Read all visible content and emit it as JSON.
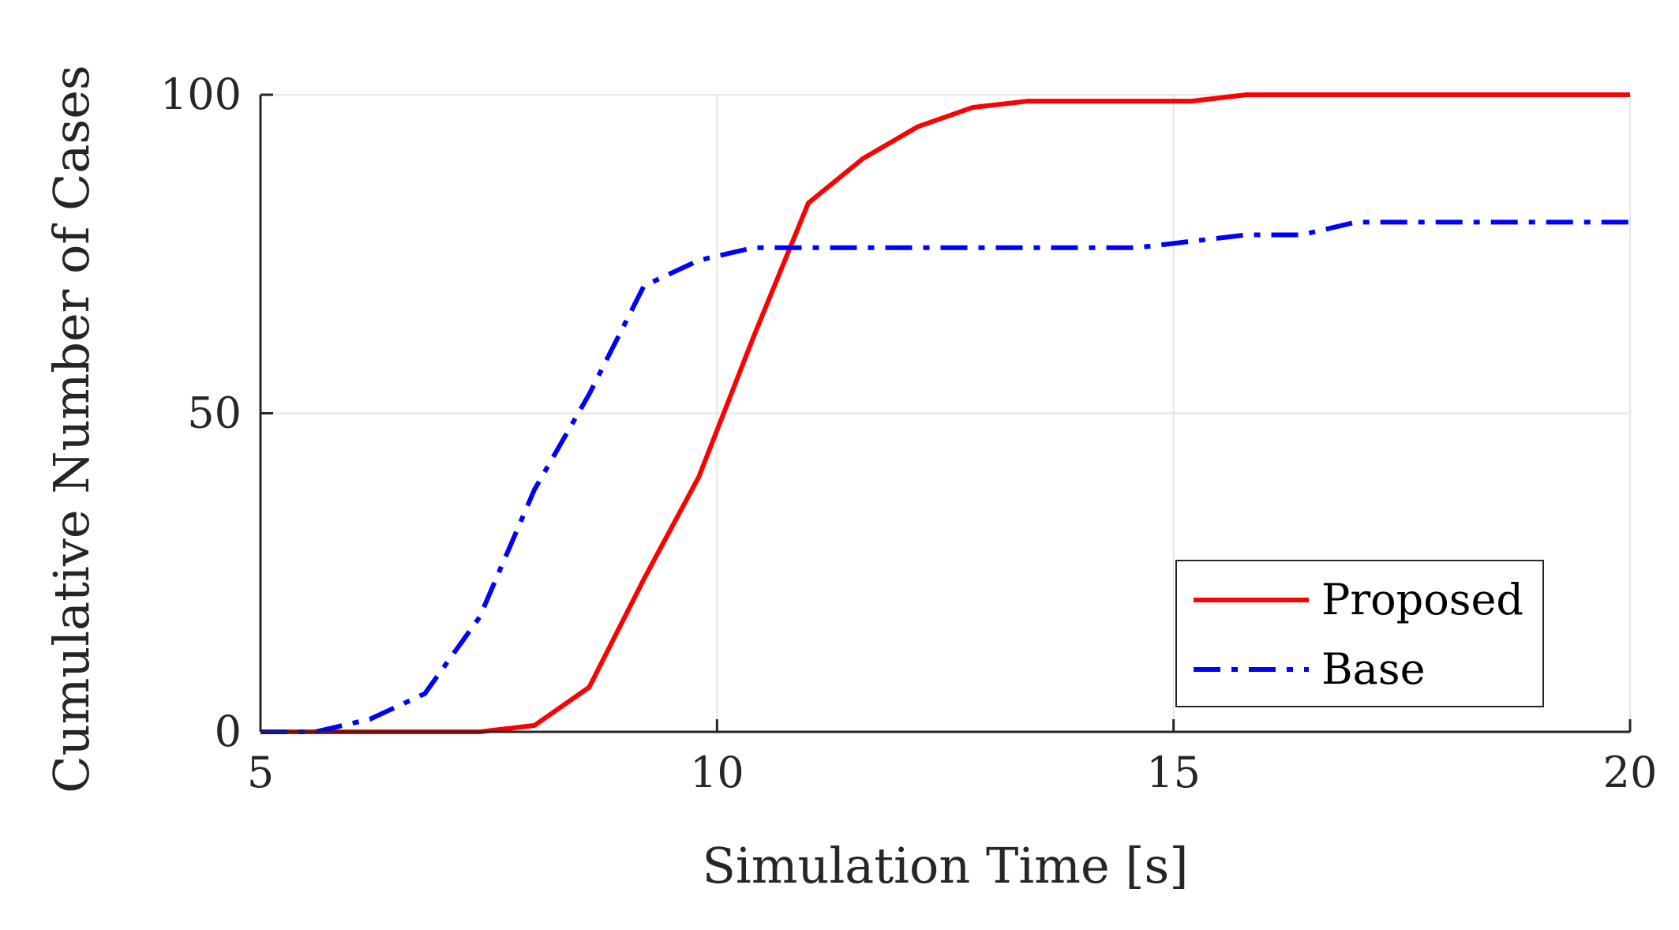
{
  "chart_data": {
    "type": "line",
    "title": "",
    "xlabel": "Simulation Time [s]",
    "ylabel": "Cumulative Number of Cases",
    "xlim": [
      5,
      20
    ],
    "ylim": [
      0,
      100
    ],
    "xticks": [
      5,
      10,
      15,
      20
    ],
    "yticks": [
      0,
      50,
      100
    ],
    "grid": true,
    "legend_position": "bottom-right",
    "series": [
      {
        "name": "Proposed",
        "color": "#ff0000",
        "style": "solid",
        "x": [
          5,
          5.6,
          6.2,
          6.8,
          7.4,
          8.0,
          8.6,
          9.2,
          9.8,
          10.4,
          11.0,
          11.6,
          12.2,
          12.8,
          13.4,
          14.0,
          14.6,
          15.2,
          15.8,
          16.4,
          17.0,
          17.6,
          18.2,
          18.8,
          19.4,
          20.0
        ],
        "y": [
          0,
          0,
          0,
          0,
          0,
          1,
          7,
          24,
          40,
          62,
          83,
          90,
          95,
          98,
          99,
          99,
          99,
          99,
          100,
          100,
          100,
          100,
          100,
          100,
          100,
          100
        ]
      },
      {
        "name": "Base",
        "color": "#0000ff",
        "style": "dashdot",
        "x": [
          5,
          5.6,
          6.2,
          6.8,
          7.4,
          8.0,
          8.6,
          9.2,
          9.8,
          10.4,
          11.0,
          11.6,
          12.2,
          12.8,
          13.4,
          14.0,
          14.6,
          15.2,
          15.8,
          16.4,
          17.0,
          17.6,
          18.2,
          18.8,
          19.4,
          20.0
        ],
        "y": [
          0,
          0,
          2,
          6,
          18,
          38,
          53,
          70,
          74,
          76,
          76,
          76,
          76,
          76,
          76,
          76,
          76,
          77,
          78,
          78,
          80,
          80,
          80,
          80,
          80,
          80
        ]
      }
    ]
  }
}
